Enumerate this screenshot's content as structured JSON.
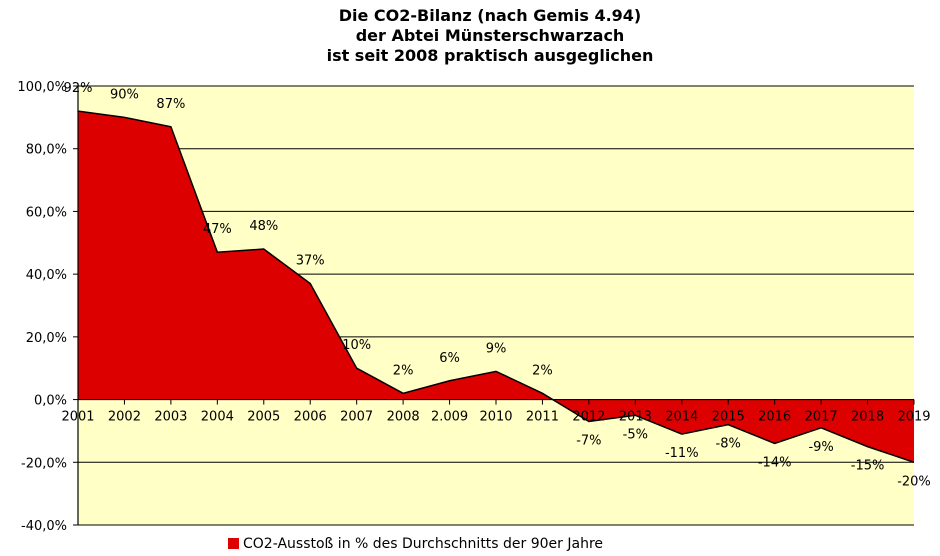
{
  "chart_data": {
    "type": "area",
    "title": [
      "Die CO2-Bilanz (nach Gemis 4.94)",
      "der Abtei Münsterschwarzach",
      "ist seit 2008 praktisch ausgeglichen"
    ],
    "categories": [
      "2001",
      "2002",
      "2003",
      "2004",
      "2005",
      "2006",
      "2007",
      "2008",
      "2.009",
      "2010",
      "2011",
      "2012",
      "2013",
      "2014",
      "2015",
      "2016",
      "2017",
      "2018",
      "2019"
    ],
    "series": [
      {
        "name": "CO2-Ausstoß in % des Durchschnitts der 90er Jahre",
        "values": [
          92,
          90,
          87,
          47,
          48,
          37,
          10,
          2,
          6,
          9,
          2,
          -7,
          -5,
          -11,
          -8,
          -14,
          -9,
          -15,
          -20
        ],
        "labels": [
          "92%",
          "90%",
          "87%",
          "47%",
          "48%",
          "37%",
          "10%",
          "2%",
          "6%",
          "9%",
          "2%",
          "-7%",
          "-5%",
          "-11%",
          "-8%",
          "-14%",
          "-9%",
          "-15%",
          "-20%"
        ]
      }
    ],
    "y_ticks": [
      100,
      80,
      60,
      40,
      20,
      0,
      -20,
      -40
    ],
    "y_tick_labels": [
      "100,0%",
      "80,0%",
      "60,0%",
      "40,0%",
      "20,0%",
      "0,0%",
      "-20,0%",
      "-40,0%"
    ],
    "ylim": [
      -40,
      100
    ],
    "grid": true,
    "legend": "bottom",
    "colors": {
      "plot_background": "#ffffc6",
      "fill": "#dd0000",
      "outline": "#000000",
      "grid": "#000000"
    }
  }
}
